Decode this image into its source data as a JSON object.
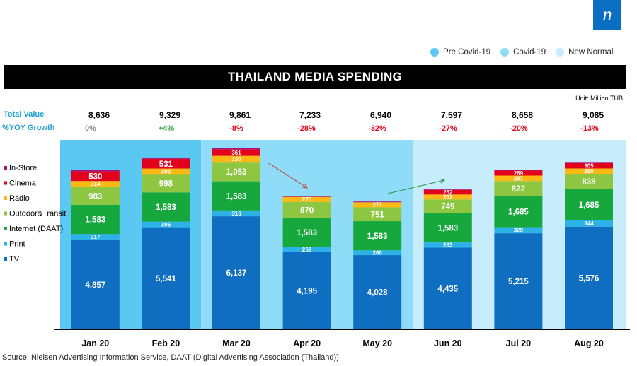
{
  "logo": {
    "text": "n",
    "color": "#0a6fc2"
  },
  "period_legend": [
    {
      "label": "Pre Covid-19",
      "color": "#5bc8f2"
    },
    {
      "label": "Covid-19",
      "color": "#8fdcf9"
    },
    {
      "label": "New Normal",
      "color": "#c7ecfb"
    }
  ],
  "summary": {
    "total_label": "Total Value",
    "yoy_label": "%YOY Growth",
    "totals": [
      "8,636",
      "9,329",
      "9,861",
      "7,233",
      "6,940",
      "7,597",
      "8,658",
      "9,085"
    ],
    "yoy": [
      "0%",
      "+4%",
      "-8%",
      "-28%",
      "-32%",
      "-27%",
      "-20%",
      "-13%"
    ],
    "yoy_colors": [
      "#888888",
      "#2e9e3e",
      "#e3001b",
      "#e3001b",
      "#e3001b",
      "#e3001b",
      "#e3001b",
      "#e3001b"
    ]
  },
  "source_note": "Source: Nielsen Advertising Information  Service, DAAT  (Digital Advertising Association (Thailand))",
  "chart_data": {
    "type": "bar",
    "stacked": true,
    "title": "THAILAND MEDIA SPENDING",
    "unit_label": "Unit: Million  THB",
    "categories": [
      "Jan 20",
      "Feb 20",
      "Mar 20",
      "Apr 20",
      "May 20",
      "Jun 20",
      "Jul 20",
      "Aug 20"
    ],
    "series": [
      {
        "name": "TV",
        "color": "#0f6ec0",
        "values": [
          4857,
          5541,
          6137,
          4195,
          4028,
          4435,
          5215,
          5576
        ]
      },
      {
        "name": "Print",
        "color": "#2db2e8",
        "values": [
          317,
          306,
          316,
          268,
          260,
          283,
          329,
          344
        ]
      },
      {
        "name": "Internet (DAAT)",
        "color": "#16a83c",
        "values": [
          1583,
          1583,
          1583,
          1583,
          1583,
          1583,
          1685,
          1685
        ]
      },
      {
        "name": "Outdoor&Transit",
        "color": "#8dc641",
        "values": [
          983,
          998,
          1053,
          870,
          751,
          749,
          822,
          838
        ]
      },
      {
        "name": "Radio",
        "color": "#fcb813",
        "values": [
          314,
          302,
          330,
          275,
          277,
          267,
          297,
          290
        ]
      },
      {
        "name": "Cinema",
        "color": "#e3001b",
        "values": [
          530,
          531,
          361,
          0,
          0,
          252,
          269,
          305
        ]
      },
      {
        "name": "In-Store",
        "color": "#a6128c",
        "values": [
          52,
          68,
          81,
          42,
          41,
          28,
          41,
          47
        ]
      }
    ],
    "legend_order": [
      "In-Store",
      "Cinema",
      "Radio",
      "Outdoor&Transit",
      "Internet (DAAT)",
      "Print",
      "TV"
    ],
    "periods": [
      {
        "name": "Pre Covid-19",
        "from": "Jan 20",
        "to": "Feb 20"
      },
      {
        "name": "Covid-19",
        "from": "Mar 20",
        "to": "May 20"
      },
      {
        "name": "New Normal",
        "from": "Jun 20",
        "to": "Aug 20"
      }
    ],
    "ylim": [
      0,
      10000
    ],
    "grid": false
  }
}
